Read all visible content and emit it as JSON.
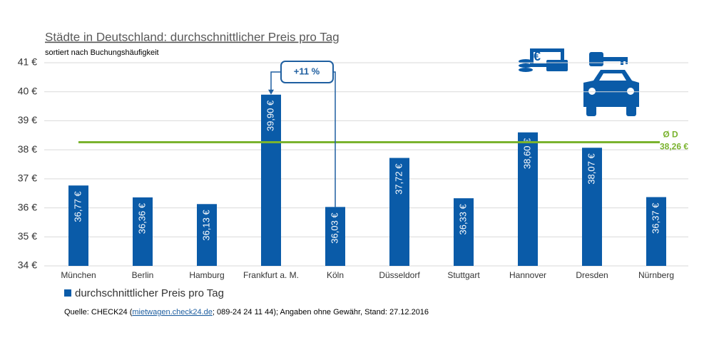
{
  "chart_data": {
    "type": "bar",
    "title": "Städte in Deutschland: durchschnittlicher Preis pro Tag",
    "subtitle": "sortiert nach Buchungshäufigkeit",
    "categories": [
      "München",
      "Berlin",
      "Hamburg",
      "Frankfurt a. M.",
      "Köln",
      "Düsseldorf",
      "Stuttgart",
      "Hannover",
      "Dresden",
      "Nürnberg"
    ],
    "series": [
      {
        "name": "durchschnittlicher Preis pro Tag",
        "color": "#0a5ba8",
        "values": [
          36.77,
          36.36,
          36.13,
          39.9,
          36.03,
          37.72,
          36.33,
          38.6,
          38.07,
          36.37
        ],
        "value_labels": [
          "36,77 €",
          "36,36 €",
          "36,13 €",
          "39,90 €",
          "36,03 €",
          "37,72 €",
          "36,33 €",
          "38,60 €",
          "38,07 €",
          "36,37 €"
        ]
      }
    ],
    "ylim": [
      34,
      41
    ],
    "yticks": [
      {
        "value": 34,
        "label": "34 €"
      },
      {
        "value": 35,
        "label": "35 €"
      },
      {
        "value": 36,
        "label": "36 €"
      },
      {
        "value": 37,
        "label": "37 €"
      },
      {
        "value": 38,
        "label": "38 €"
      },
      {
        "value": 39,
        "label": "39 €"
      },
      {
        "value": 40,
        "label": "40 €"
      },
      {
        "value": 41,
        "label": "41 €"
      }
    ],
    "grid": true,
    "average": {
      "name": "Ø D",
      "value": 38.26,
      "label": "38,26 €",
      "color": "#7ab32e"
    },
    "annotation": "+11 %",
    "source": {
      "prefix": "Quelle: CHECK24 (",
      "link": "mietwagen.check24.de",
      "suffix": "; 089-24 24 11 44); Angaben ohne Gewähr, Stand: 27.12.2016"
    }
  }
}
